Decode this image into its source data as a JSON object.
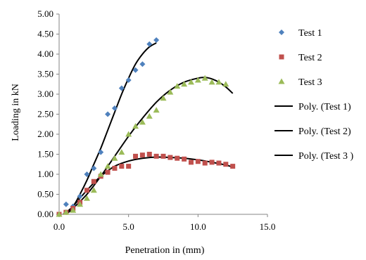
{
  "chart_data": {
    "type": "scatter",
    "title": "",
    "xlabel": "Penetration  in  (mm)",
    "ylabel": "Loading in kN",
    "xlim": [
      0,
      15
    ],
    "ylim": [
      0,
      5
    ],
    "x_ticks": [
      "0.0",
      "5.0",
      "10.0",
      "15.0"
    ],
    "y_ticks": [
      "0.00",
      "0.50",
      "1.00",
      "1.50",
      "2.00",
      "2.50",
      "3.00",
      "3.50",
      "4.00",
      "4.50",
      "5.00"
    ],
    "grid": false,
    "legend_position": "right",
    "series": [
      {
        "name": "Test 1",
        "kind": "marker",
        "marker": "diamond",
        "color": "#4F81BD",
        "points": [
          [
            0.0,
            0.0
          ],
          [
            0.5,
            0.25
          ],
          [
            1.0,
            0.2
          ],
          [
            1.5,
            0.45
          ],
          [
            2.0,
            1.0
          ],
          [
            2.5,
            1.15
          ],
          [
            3.0,
            1.55
          ],
          [
            3.5,
            2.5
          ],
          [
            4.0,
            2.65
          ],
          [
            4.5,
            3.15
          ],
          [
            5.0,
            3.35
          ],
          [
            5.5,
            3.6
          ],
          [
            6.0,
            3.75
          ],
          [
            6.5,
            4.25
          ],
          [
            7.0,
            4.35
          ]
        ]
      },
      {
        "name": "Test 2",
        "kind": "marker",
        "marker": "square",
        "color": "#C0504D",
        "points": [
          [
            0.0,
            0.0
          ],
          [
            0.5,
            0.05
          ],
          [
            1.0,
            0.15
          ],
          [
            1.5,
            0.3
          ],
          [
            2.0,
            0.6
          ],
          [
            2.5,
            0.82
          ],
          [
            3.0,
            0.95
          ],
          [
            3.5,
            1.05
          ],
          [
            4.0,
            1.15
          ],
          [
            4.5,
            1.2
          ],
          [
            5.0,
            1.2
          ],
          [
            5.5,
            1.45
          ],
          [
            6.0,
            1.48
          ],
          [
            6.5,
            1.5
          ],
          [
            7.0,
            1.45
          ],
          [
            7.5,
            1.45
          ],
          [
            8.0,
            1.42
          ],
          [
            8.5,
            1.4
          ],
          [
            9.0,
            1.38
          ],
          [
            9.5,
            1.3
          ],
          [
            10.0,
            1.32
          ],
          [
            10.5,
            1.28
          ],
          [
            11.0,
            1.3
          ],
          [
            11.5,
            1.28
          ],
          [
            12.0,
            1.25
          ],
          [
            12.5,
            1.2
          ]
        ]
      },
      {
        "name": "Test 3",
        "kind": "marker",
        "marker": "triangle",
        "color": "#9BBB59",
        "points": [
          [
            0.0,
            0.0
          ],
          [
            0.5,
            0.05
          ],
          [
            1.0,
            0.1
          ],
          [
            1.5,
            0.25
          ],
          [
            2.0,
            0.4
          ],
          [
            2.5,
            0.6
          ],
          [
            3.0,
            1.0
          ],
          [
            3.5,
            1.2
          ],
          [
            4.0,
            1.4
          ],
          [
            4.5,
            1.55
          ],
          [
            5.0,
            2.0
          ],
          [
            5.5,
            2.2
          ],
          [
            6.0,
            2.3
          ],
          [
            6.5,
            2.45
          ],
          [
            7.0,
            2.6
          ],
          [
            7.5,
            2.9
          ],
          [
            8.0,
            3.05
          ],
          [
            8.5,
            3.2
          ],
          [
            9.0,
            3.25
          ],
          [
            9.5,
            3.3
          ],
          [
            10.0,
            3.35
          ],
          [
            10.5,
            3.4
          ],
          [
            11.0,
            3.3
          ],
          [
            11.5,
            3.3
          ],
          [
            12.0,
            3.25
          ]
        ]
      },
      {
        "name": "Poly. (Test 1)",
        "kind": "trendline",
        "color": "#000000",
        "points": [
          [
            0.3,
            0.0
          ],
          [
            1.0,
            0.2
          ],
          [
            1.5,
            0.5
          ],
          [
            2.0,
            0.85
          ],
          [
            2.5,
            1.25
          ],
          [
            3.0,
            1.65
          ],
          [
            3.5,
            2.1
          ],
          [
            4.0,
            2.55
          ],
          [
            4.5,
            3.0
          ],
          [
            5.0,
            3.4
          ],
          [
            5.5,
            3.75
          ],
          [
            6.0,
            4.0
          ],
          [
            6.5,
            4.18
          ],
          [
            7.0,
            4.28
          ]
        ]
      },
      {
        "name": "Poly. (Test 2)",
        "kind": "trendline",
        "color": "#000000",
        "points": [
          [
            0.5,
            0.0
          ],
          [
            1.0,
            0.2
          ],
          [
            2.0,
            0.6
          ],
          [
            3.0,
            0.95
          ],
          [
            4.0,
            1.2
          ],
          [
            5.0,
            1.33
          ],
          [
            6.0,
            1.4
          ],
          [
            7.0,
            1.43
          ],
          [
            8.0,
            1.42
          ],
          [
            9.0,
            1.4
          ],
          [
            10.0,
            1.36
          ],
          [
            11.0,
            1.3
          ],
          [
            12.0,
            1.23
          ],
          [
            12.5,
            1.18
          ]
        ]
      },
      {
        "name": "Poly. (Test 3 )",
        "kind": "trendline",
        "color": "#000000",
        "points": [
          [
            0.5,
            0.0
          ],
          [
            1.0,
            0.15
          ],
          [
            2.0,
            0.5
          ],
          [
            3.0,
            0.95
          ],
          [
            4.0,
            1.45
          ],
          [
            5.0,
            1.95
          ],
          [
            6.0,
            2.4
          ],
          [
            7.0,
            2.8
          ],
          [
            8.0,
            3.1
          ],
          [
            9.0,
            3.3
          ],
          [
            10.0,
            3.4
          ],
          [
            10.5,
            3.42
          ],
          [
            11.0,
            3.38
          ],
          [
            11.5,
            3.3
          ],
          [
            12.0,
            3.18
          ],
          [
            12.5,
            3.02
          ]
        ]
      }
    ]
  }
}
